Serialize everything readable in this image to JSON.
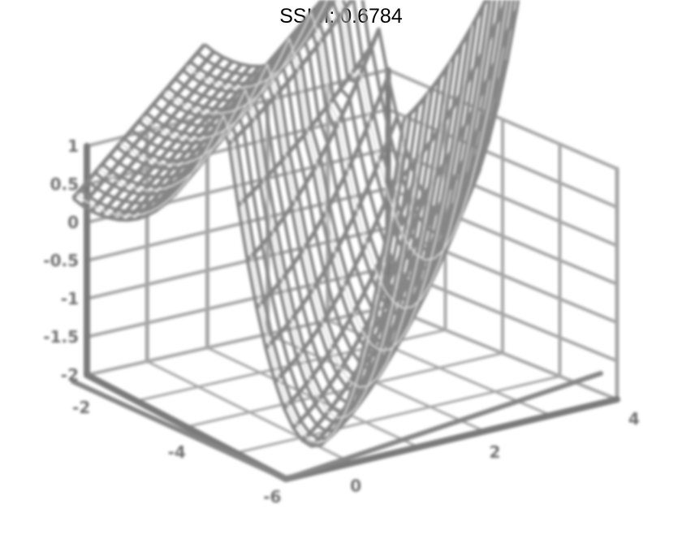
{
  "figure": {
    "title": "SSIM: 0.6784"
  },
  "colors": {
    "axis": "#7a7a7a",
    "grid": "#a6a6a6",
    "mesh": "#868686",
    "mesh_highlight": "#d9d9d9",
    "tick_text": "#6e6e6e"
  },
  "chart_data": {
    "type": "surface",
    "title": "SSIM: 0.6784",
    "render": "wireframe surface, grayscale, blurred",
    "axes": {
      "x": {
        "ticks": [
          "0",
          "2",
          "4"
        ],
        "range": [
          0,
          4
        ]
      },
      "y": {
        "ticks": [
          "-2",
          "-4",
          "-6"
        ],
        "range": [
          -6,
          0
        ]
      },
      "z": {
        "ticks": [
          "1",
          "0.5",
          "0",
          "-0.5",
          "-1",
          "-1.5",
          "-2"
        ],
        "range": [
          -2,
          1
        ]
      }
    },
    "grid": true,
    "legend": "none"
  }
}
